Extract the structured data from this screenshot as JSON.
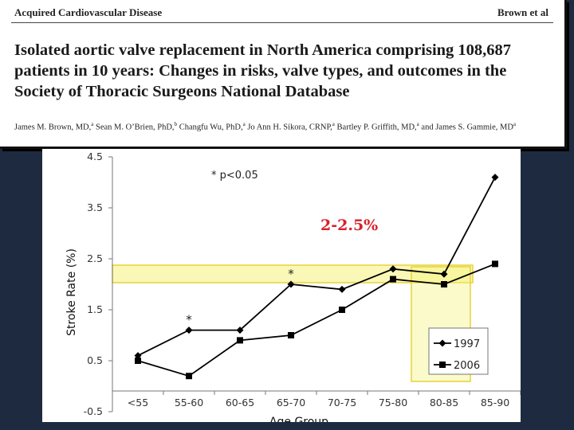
{
  "paper": {
    "journal_section": "Acquired Cardiovascular Disease",
    "running_author": "Brown et al",
    "title": "Isolated aortic valve replacement in North America comprising 108,687 patients in 10 years: Changes in risks, valve types, and outcomes in the Society of Thoracic Surgeons National Database",
    "authors": [
      {
        "name": "James M. Brown, MD,",
        "sup": "a",
        "sep": " "
      },
      {
        "name": "Sean M. O’Brien, PhD,",
        "sup": "b",
        "sep": " "
      },
      {
        "name": "Changfu Wu, PhD,",
        "sup": "a",
        "sep": " "
      },
      {
        "name": "Jo Ann H. Sikora, CRNP,",
        "sup": "a",
        "sep": " "
      },
      {
        "name": "Bartley P. Griffith, MD,",
        "sup": "a",
        "sep": " and "
      },
      {
        "name": "James S. Gammie, MD",
        "sup": "a",
        "sep": ""
      }
    ]
  },
  "chart_data": {
    "type": "line",
    "title": "",
    "xlabel": "Age Group",
    "ylabel": "Stroke Rate (%)",
    "categories": [
      "<55",
      "55-60",
      "60-65",
      "65-70",
      "70-75",
      "75-80",
      "80-85",
      "85-90"
    ],
    "ylim": [
      -0.5,
      4.5
    ],
    "yticks": [
      "-0.5",
      "0.5",
      "1.5",
      "2.5",
      "3.5",
      "4.5"
    ],
    "series": [
      {
        "name": "1997",
        "marker": "diamond",
        "values": [
          0.6,
          1.1,
          1.1,
          2.0,
          1.9,
          2.3,
          2.2,
          4.1
        ]
      },
      {
        "name": "2006",
        "marker": "square",
        "values": [
          0.5,
          0.2,
          0.9,
          1.0,
          1.5,
          2.1,
          2.0,
          2.4
        ]
      }
    ],
    "significance_note": "* p<0.05",
    "significant_categories": [
      "55-60",
      "65-70"
    ],
    "highlight_range_label": "2-2.5%",
    "highlight_y_range": [
      2.0,
      2.25
    ],
    "highlight_category": "80-85",
    "legend_position": "bottom-right",
    "colors": {
      "line": "#000000",
      "highlight_fill": "#f6f37a",
      "highlight_stroke": "#e7d23a",
      "range_label": "#d8202a"
    }
  }
}
